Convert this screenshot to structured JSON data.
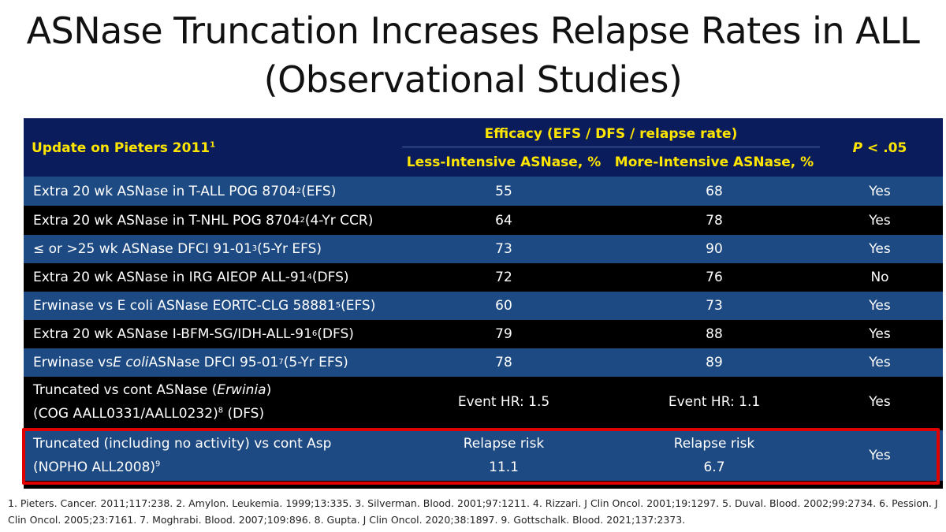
{
  "title": {
    "line1": "ASNase Truncation Increases Relapse Rates in ALL",
    "line2": "(Observational Studies)"
  },
  "table": {
    "header": {
      "col1": "Update on Pieters 2011",
      "col1_sup": "1",
      "efficacy": "Efficacy (EFS / DFS / relapse rate)",
      "less": "Less-Intensive ASNase, %",
      "more": "More-Intensive ASNase, %",
      "p": "P",
      "p_rest": " < .05"
    },
    "rows": [
      {
        "pre": "Extra 20 wk ASNase in T-ALL POG 8704",
        "sup": "2",
        "post": " (EFS)",
        "less": "55",
        "more": "68",
        "sig": "Yes"
      },
      {
        "pre": "Extra 20 wk ASNase in T-NHL POG 8704",
        "sup": "2",
        "post": " (4-Yr CCR)",
        "less": "64",
        "more": "78",
        "sig": "Yes"
      },
      {
        "pre": "≤ or >25 wk ASNase DFCI 91-01",
        "sup": "3",
        "post": " (5-Yr EFS)",
        "less": "73",
        "more": "90",
        "sig": "Yes"
      },
      {
        "pre": "Extra 20 wk ASNase in IRG AIEOP ALL-91",
        "sup": "4",
        "post": " (DFS)",
        "less": "72",
        "more": "76",
        "sig": "No"
      },
      {
        "pre": "Erwinase vs E coli ASNase EORTC-CLG 58881",
        "sup": "5",
        "post": " (EFS)",
        "less": "60",
        "more": "73",
        "sig": "Yes"
      },
      {
        "pre": "Extra 20 wk ASNase I-BFM-SG/IDH-ALL-91",
        "sup": "6",
        "post": " (DFS)",
        "less": "79",
        "more": "88",
        "sig": "Yes"
      },
      {
        "pre_a": "Erwinase vs ",
        "pre_i": "E coli",
        "pre_b": " ASNase DFCI 95-01",
        "sup": "7",
        "post": " (5-Yr EFS)",
        "less": "78",
        "more": "89",
        "sig": "Yes"
      }
    ],
    "row8": {
      "line1_a": "Truncated vs cont ASNase (",
      "line1_i": "Erwinia",
      "line1_b": ")",
      "line2_pre": "(COG AALL0331/AALL0232)",
      "line2_sup": "8",
      "line2_post": " (DFS)",
      "less": "Event HR: 1.5",
      "more": "Event HR: 1.1",
      "sig": "Yes"
    },
    "row9": {
      "line1": "Truncated (including no activity) vs cont Asp",
      "line2_pre": "(NOPHO ALL2008)",
      "line2_sup": "9",
      "less_label": "Relapse risk",
      "less_value": "11.1",
      "more_label": "Relapse risk",
      "more_value": "6.7",
      "sig": "Yes"
    }
  },
  "footnote": "1. Pieters. Cancer. 2011;117:238. 2. Amylon. Leukemia. 1999;13:335. 3. Silverman. Blood. 2001;97:1211. 4. Rizzari. J Clin Oncol. 2001;19:1297. 5. Duval. Blood. 2002;99:2734. 6. Pession. J Clin Oncol. 2005;23:7161. 7. Moghrabi. Blood. 2007;109:896. 8. Gupta. J Clin Oncol. 2020;38:1897. 9. Gottschalk. Blood. 2021;137:2373.",
  "colors": {
    "header_bg": "#0b1c5c",
    "row_blue": "#1d4a82",
    "row_black": "#000000",
    "header_text": "#ffe600",
    "highlight_border": "#e00000"
  }
}
